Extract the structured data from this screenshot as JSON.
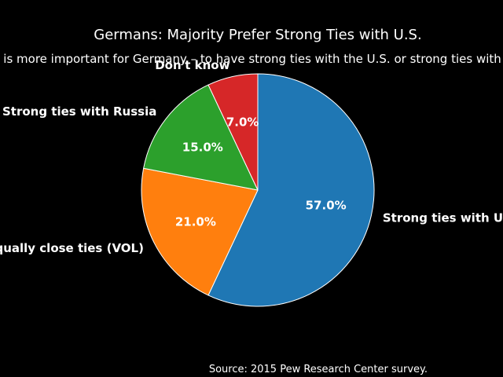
{
  "chart_data": {
    "type": "pie",
    "title": "Germans: Majority Prefer Strong Ties with U.S.",
    "subtitle": "Which is more important for Germany – to have strong ties with the U.S. or strong ties with Russia?",
    "start_angle_deg": 90,
    "direction": "clockwise",
    "slices": [
      {
        "label": "Strong ties with U.S.",
        "value": 57.0,
        "pct_label": "57.0%",
        "color": "#1f77b4"
      },
      {
        "label": "Equally close ties (VOL)",
        "value": 21.0,
        "pct_label": "21.0%",
        "color": "#ff7f0e"
      },
      {
        "label": "Strong ties with Russia",
        "value": 15.0,
        "pct_label": "15.0%",
        "color": "#2ca02c"
      },
      {
        "label": "Don't know",
        "value": 7.0,
        "pct_label": "7.0%",
        "color": "#d62728"
      }
    ],
    "source": "Source: 2015 Pew Research Center survey."
  }
}
